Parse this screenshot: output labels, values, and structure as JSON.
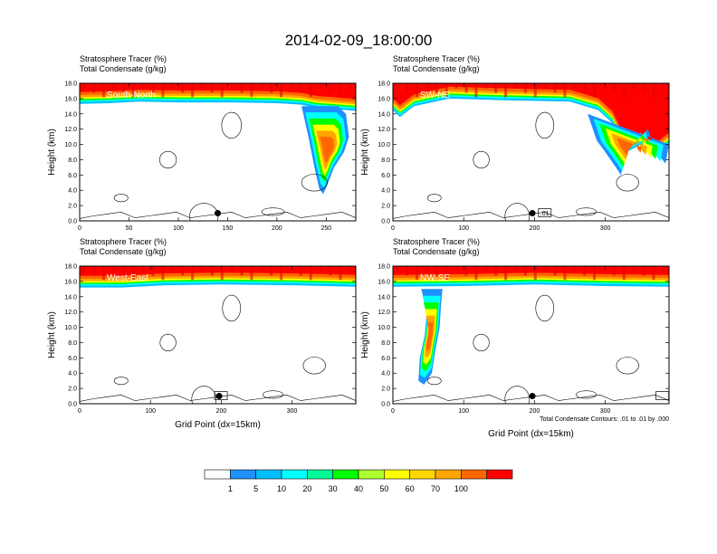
{
  "title": "2014-02-09_18:00:00",
  "colors": {
    "levels": [
      "#ffffff",
      "#1e90ff",
      "#00bfff",
      "#00ffff",
      "#00fa9a",
      "#00ff00",
      "#adff2f",
      "#ffff00",
      "#ffd700",
      "#ffa500",
      "#ff6600",
      "#ff0000"
    ],
    "contour": "#000000",
    "panel_label": "#ffffff"
  },
  "shared": {
    "subtitle_left_1": "Stratosphere Tracer   (%)",
    "subtitle_left_2": "Total Condensate   (g/kg)",
    "ylabel": "Height (km)",
    "xlabel": "Grid Point (dx=15km)",
    "contour_note": "Total Condensate Contours: .01 to .01 by .000",
    "box_label": ".01"
  },
  "colorbar": {
    "labels": [
      "1",
      "5",
      "10",
      "20",
      "30",
      "40",
      "50",
      "60",
      "70",
      "100"
    ]
  },
  "chart_data": [
    {
      "type": "heatmap",
      "name": "South-North",
      "panel_label": "South-North",
      "xlim": [
        0,
        280
      ],
      "ylim": [
        0,
        18
      ],
      "xticks": [
        "0",
        "50",
        "100",
        "150",
        "200",
        "250"
      ],
      "xtick_values": [
        0,
        50,
        100,
        150,
        200,
        250
      ],
      "yticks": [
        "0.0",
        "2.0",
        "4.0",
        "6.0",
        "8.0",
        "10.0",
        "12.0",
        "14.0",
        "16.0",
        "18.0"
      ],
      "tropopause_km": [
        [
          0,
          15.3
        ],
        [
          30,
          15.4
        ],
        [
          60,
          15.6
        ],
        [
          100,
          15.5
        ],
        [
          150,
          15.5
        ],
        [
          200,
          15.4
        ],
        [
          225,
          15.2
        ],
        [
          240,
          14.8
        ],
        [
          260,
          14.6
        ],
        [
          280,
          14.4
        ]
      ],
      "intrusions": [
        {
          "path": [
            [
              225,
              15
            ],
            [
              232,
              11
            ],
            [
              238,
              7
            ],
            [
              243,
              4.2
            ],
            [
              247,
              3.5
            ],
            [
              252,
              5
            ],
            [
              258,
              7
            ],
            [
              268,
              9
            ],
            [
              273,
              11
            ],
            [
              270,
              14
            ],
            [
              262,
              15
            ]
          ],
          "peak_pct": 70
        }
      ],
      "marker_x": 140,
      "marker_y_km": 1.0,
      "xlabel_shown": false
    },
    {
      "type": "heatmap",
      "name": "SW-NE",
      "panel_label": "SW-NE",
      "xlim": [
        0,
        390
      ],
      "ylim": [
        0,
        18
      ],
      "xticks": [
        "0",
        "100",
        "200",
        "300"
      ],
      "xtick_values": [
        0,
        100,
        200,
        300
      ],
      "yticks": [
        "0.0",
        "2.0",
        "4.0",
        "6.0",
        "8.0",
        "10.0",
        "12.0",
        "14.0",
        "16.0",
        "18.0"
      ],
      "tropopause_km": [
        [
          0,
          14.5
        ],
        [
          10,
          13.6
        ],
        [
          30,
          15.0
        ],
        [
          80,
          16.0
        ],
        [
          150,
          15.8
        ],
        [
          250,
          15.6
        ],
        [
          290,
          14.5
        ],
        [
          310,
          12.8
        ],
        [
          330,
          9
        ],
        [
          350,
          10
        ],
        [
          370,
          8.5
        ],
        [
          390,
          10
        ]
      ],
      "intrusions": [
        {
          "path": [
            [
              275,
              14
            ],
            [
              288,
              10.5
            ],
            [
              300,
              9
            ],
            [
              315,
              7
            ],
            [
              322,
              6
            ],
            [
              330,
              9
            ],
            [
              345,
              10.5
            ],
            [
              360,
              12
            ],
            [
              372,
              9
            ],
            [
              385,
              7.5
            ],
            [
              390,
              10
            ]
          ],
          "peak_pct": 70
        }
      ],
      "marker_x": 197,
      "marker_y_km": 1.0,
      "box_x": 212,
      "xlabel_shown": false
    },
    {
      "type": "heatmap",
      "name": "West-East",
      "panel_label": "West-East",
      "xlim": [
        0,
        390
      ],
      "ylim": [
        0,
        18
      ],
      "xticks": [
        "0",
        "100",
        "200",
        "300"
      ],
      "xtick_values": [
        0,
        100,
        200,
        300
      ],
      "yticks": [
        "0.0",
        "2.0",
        "4.0",
        "6.0",
        "8.0",
        "10.0",
        "12.0",
        "14.0",
        "16.0",
        "18.0"
      ],
      "tropopause_km": [
        [
          0,
          15.2
        ],
        [
          60,
          15.2
        ],
        [
          120,
          15.5
        ],
        [
          200,
          15.6
        ],
        [
          300,
          15.5
        ],
        [
          390,
          15.3
        ]
      ],
      "intrusions": [],
      "marker_x": 197,
      "marker_y_km": 1.0,
      "box_x": 197,
      "xlabel_shown": true
    },
    {
      "type": "heatmap",
      "name": "NW-SE",
      "panel_label": "NW-SE",
      "xlim": [
        0,
        390
      ],
      "ylim": [
        0,
        18
      ],
      "xticks": [
        "0",
        "100",
        "200",
        "300"
      ],
      "xtick_values": [
        0,
        100,
        200,
        300
      ],
      "yticks": [
        "0.0",
        "2.0",
        "4.0",
        "6.0",
        "8.0",
        "10.0",
        "12.0",
        "14.0",
        "16.0",
        "18.0"
      ],
      "tropopause_km": [
        [
          0,
          15.3
        ],
        [
          100,
          15.4
        ],
        [
          200,
          15.6
        ],
        [
          300,
          15.4
        ],
        [
          390,
          15.3
        ]
      ],
      "intrusions": [
        {
          "path": [
            [
              40,
              15
            ],
            [
              48,
              12
            ],
            [
              45,
              9
            ],
            [
              38,
              6
            ],
            [
              36,
              3
            ],
            [
              44,
              2.5
            ],
            [
              55,
              4
            ],
            [
              60,
              7
            ],
            [
              66,
              10
            ],
            [
              68,
              13
            ],
            [
              70,
              15
            ]
          ],
          "peak_pct": 70
        }
      ],
      "marker_x": 197,
      "marker_y_km": 1.0,
      "box_x": 378,
      "xlabel_shown": true,
      "note_shown": true
    }
  ]
}
